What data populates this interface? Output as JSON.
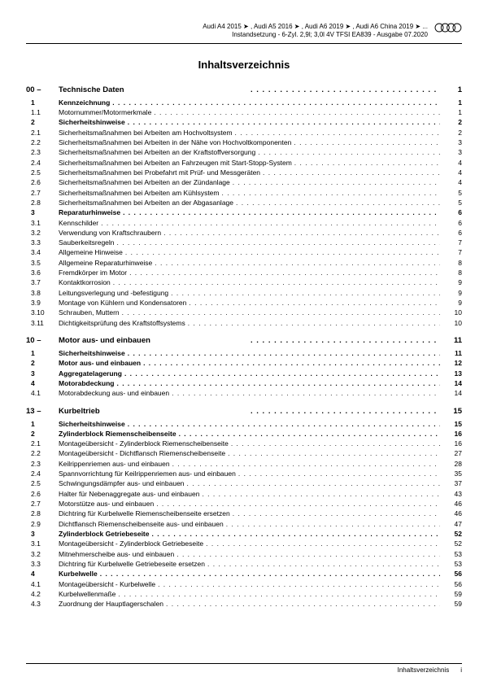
{
  "header": {
    "line1": "Audi A4 2015 ➤ , Audi A5 2016 ➤ , Audi A6 2019 ➤ , Audi A6 China 2019 ➤ ...",
    "line2": "Instandsetzung - 6-Zyl. 2,9l; 3,0l 4V TFSI EA839 - Ausgabe 07.2020"
  },
  "title": "Inhaltsverzeichnis",
  "sections": [
    {
      "num": "00 –",
      "label": "Technische Daten",
      "page": "1",
      "entries": [
        {
          "num": "1",
          "label": "Kennzeichnung",
          "page": "1",
          "bold": true
        },
        {
          "num": "1.1",
          "label": "Motornummer/Motormerkmale",
          "page": "1",
          "bold": false
        },
        {
          "num": "2",
          "label": "Sicherheitshinweise",
          "page": "2",
          "bold": true
        },
        {
          "num": "2.1",
          "label": "Sicherheitsmaßnahmen bei Arbeiten am Hochvoltsystem",
          "page": "2",
          "bold": false
        },
        {
          "num": "2.2",
          "label": "Sicherheitsmaßnahmen bei Arbeiten in der Nähe von Hochvoltkomponenten",
          "page": "3",
          "bold": false
        },
        {
          "num": "2.3",
          "label": "Sicherheitsmaßnahmen bei Arbeiten an der Kraftstoffversorgung",
          "page": "3",
          "bold": false
        },
        {
          "num": "2.4",
          "label": "Sicherheitsmaßnahmen bei Arbeiten an Fahrzeugen mit Start-Stopp-System",
          "page": "4",
          "bold": false
        },
        {
          "num": "2.5",
          "label": "Sicherheitsmaßnahmen bei Probefahrt mit Prüf- und Messgeräten",
          "page": "4",
          "bold": false
        },
        {
          "num": "2.6",
          "label": "Sicherheitsmaßnahmen bei Arbeiten an der Zündanlage",
          "page": "4",
          "bold": false
        },
        {
          "num": "2.7",
          "label": "Sicherheitsmaßnahmen bei Arbeiten am Kühlsystem",
          "page": "5",
          "bold": false
        },
        {
          "num": "2.8",
          "label": "Sicherheitsmaßnahmen bei Arbeiten an der Abgasanlage",
          "page": "5",
          "bold": false
        },
        {
          "num": "3",
          "label": "Reparaturhinweise",
          "page": "6",
          "bold": true
        },
        {
          "num": "3.1",
          "label": "Kennschilder",
          "page": "6",
          "bold": false
        },
        {
          "num": "3.2",
          "label": "Verwendung von Kraftschraubern",
          "page": "6",
          "bold": false
        },
        {
          "num": "3.3",
          "label": "Sauberkeitsregeln",
          "page": "7",
          "bold": false
        },
        {
          "num": "3.4",
          "label": "Allgemeine Hinweise",
          "page": "7",
          "bold": false
        },
        {
          "num": "3.5",
          "label": "Allgemeine Reparaturhinweise",
          "page": "8",
          "bold": false
        },
        {
          "num": "3.6",
          "label": "Fremdkörper im Motor",
          "page": "8",
          "bold": false
        },
        {
          "num": "3.7",
          "label": "Kontaktkorrosion",
          "page": "9",
          "bold": false
        },
        {
          "num": "3.8",
          "label": "Leitungsverlegung und -befestigung",
          "page": "9",
          "bold": false
        },
        {
          "num": "3.9",
          "label": "Montage von Kühlern und Kondensatoren",
          "page": "9",
          "bold": false
        },
        {
          "num": "3.10",
          "label": "Schrauben, Muttern",
          "page": "10",
          "bold": false
        },
        {
          "num": "3.11",
          "label": "Dichtigkeitsprüfung des Kraftstoffsystems",
          "page": "10",
          "bold": false
        }
      ]
    },
    {
      "num": "10 –",
      "label": "Motor aus- und einbauen",
      "page": "11",
      "entries": [
        {
          "num": "1",
          "label": "Sicherheitshinweise",
          "page": "11",
          "bold": true
        },
        {
          "num": "2",
          "label": "Motor aus- und einbauen",
          "page": "12",
          "bold": true
        },
        {
          "num": "3",
          "label": "Aggregatelagerung",
          "page": "13",
          "bold": true
        },
        {
          "num": "4",
          "label": "Motorabdeckung",
          "page": "14",
          "bold": true
        },
        {
          "num": "4.1",
          "label": "Motorabdeckung aus- und einbauen",
          "page": "14",
          "bold": false
        }
      ]
    },
    {
      "num": "13 –",
      "label": "Kurbeltrieb",
      "page": "15",
      "entries": [
        {
          "num": "1",
          "label": "Sicherheitshinweise",
          "page": "15",
          "bold": true
        },
        {
          "num": "2",
          "label": "Zylinderblock Riemenscheibenseite",
          "page": "16",
          "bold": true
        },
        {
          "num": "2.1",
          "label": "Montageübersicht - Zylinderblock Riemenscheibenseite",
          "page": "16",
          "bold": false
        },
        {
          "num": "2.2",
          "label": "Montageübersicht - Dichtflansch Riemenscheibenseite",
          "page": "27",
          "bold": false
        },
        {
          "num": "2.3",
          "label": "Keilrippenriemen aus- und einbauen",
          "page": "28",
          "bold": false
        },
        {
          "num": "2.4",
          "label": "Spannvorrichtung für Keilrippenriemen aus- und einbauen",
          "page": "35",
          "bold": false
        },
        {
          "num": "2.5",
          "label": "Schwingungsdämpfer aus- und einbauen",
          "page": "37",
          "bold": false
        },
        {
          "num": "2.6",
          "label": "Halter für Nebenaggregate aus- und einbauen",
          "page": "43",
          "bold": false
        },
        {
          "num": "2.7",
          "label": "Motorstütze aus- und einbauen",
          "page": "46",
          "bold": false
        },
        {
          "num": "2.8",
          "label": "Dichtring für Kurbelwelle Riemenscheibenseite ersetzen",
          "page": "46",
          "bold": false
        },
        {
          "num": "2.9",
          "label": "Dichtflansch Riemenscheibenseite aus- und einbauen",
          "page": "47",
          "bold": false
        },
        {
          "num": "3",
          "label": "Zylinderblock Getriebeseite",
          "page": "52",
          "bold": true
        },
        {
          "num": "3.1",
          "label": "Montageübersicht - Zylinderblock Getriebeseite",
          "page": "52",
          "bold": false
        },
        {
          "num": "3.2",
          "label": "Mitnehmerscheibe aus- und einbauen",
          "page": "53",
          "bold": false
        },
        {
          "num": "3.3",
          "label": "Dichtring für Kurbelwelle Getriebeseite ersetzen",
          "page": "53",
          "bold": false
        },
        {
          "num": "4",
          "label": "Kurbelwelle",
          "page": "56",
          "bold": true
        },
        {
          "num": "4.1",
          "label": "Montageübersicht - Kurbelwelle",
          "page": "56",
          "bold": false
        },
        {
          "num": "4.2",
          "label": "Kurbelwellenmaße",
          "page": "59",
          "bold": false
        },
        {
          "num": "4.3",
          "label": "Zuordnung der Hauptlagerschalen",
          "page": "59",
          "bold": false
        }
      ]
    }
  ],
  "footer": {
    "label": "Inhaltsverzeichnis",
    "page": "i"
  }
}
